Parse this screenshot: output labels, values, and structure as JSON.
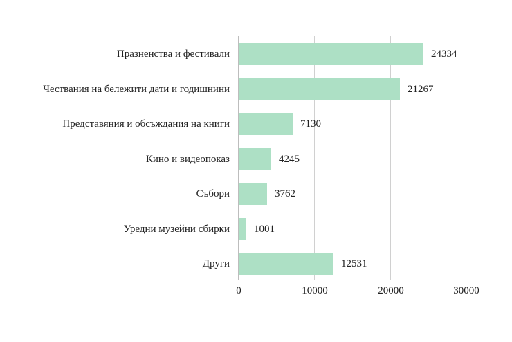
{
  "chart_data": {
    "type": "bar",
    "orientation": "horizontal",
    "title": "",
    "xlabel": "",
    "ylabel": "",
    "categories": [
      "Празненства и фестивали",
      "Чествания на бележити дати и годишнини",
      "Представяния и обсъждания на книги",
      "Кино и видеопоказ",
      "Събори",
      "Уредни музейни сбирки",
      "Други"
    ],
    "values": [
      24334,
      21267,
      7130,
      4245,
      3762,
      1001,
      12531
    ],
    "value_labels": [
      "24334",
      "21267",
      "7130",
      "4245",
      "3762",
      "1001",
      "12531"
    ],
    "xlim": [
      0,
      30000
    ],
    "x_ticks": [
      "0",
      "10000",
      "20000",
      "30000"
    ],
    "grid": "vertical",
    "legend": null,
    "bar_color": "#ade0c5"
  }
}
